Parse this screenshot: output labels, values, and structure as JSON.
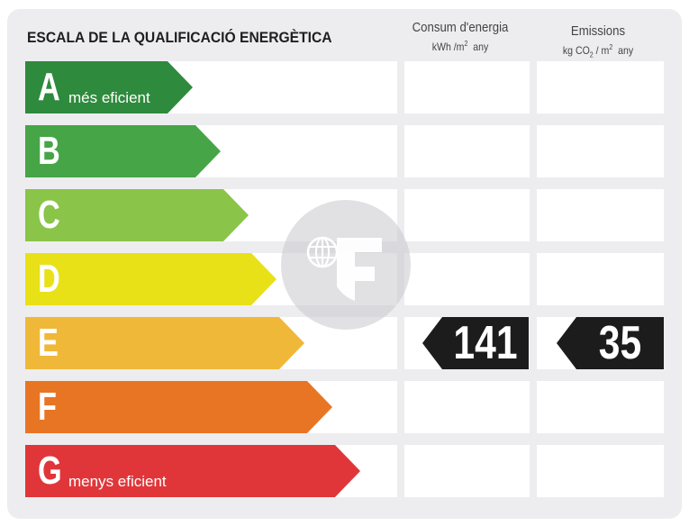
{
  "title": "ESCALA DE LA QUALIFICACIÓ ENERGÈTICA",
  "columns": {
    "consum": {
      "label": "Consum d'energia",
      "unit_prefix": "kWh /m",
      "unit_sup": "2",
      "unit_suffix": "  any"
    },
    "emissions": {
      "label": "Emissions",
      "unit_prefix": "kg CO",
      "unit_sub": "2",
      "unit_mid": " / m",
      "unit_sup": "2",
      "unit_suffix": "  any"
    }
  },
  "classes": [
    {
      "letter": "A",
      "label": "més eficient",
      "color": "#2e8a3c"
    },
    {
      "letter": "B",
      "label": "",
      "color": "#46a547"
    },
    {
      "letter": "C",
      "label": "",
      "color": "#8ac449"
    },
    {
      "letter": "D",
      "label": "",
      "color": "#e8e117"
    },
    {
      "letter": "E",
      "label": "",
      "color": "#f0b838"
    },
    {
      "letter": "F",
      "label": "",
      "color": "#e87524"
    },
    {
      "letter": "G",
      "label": "menys eficient",
      "color": "#e0363a"
    }
  ],
  "rating": {
    "class": "E",
    "consum_value": "141",
    "emissions_value": "35",
    "marker_color": "#1c1c1c"
  },
  "watermark_icon": "f-globe-logo-icon"
}
